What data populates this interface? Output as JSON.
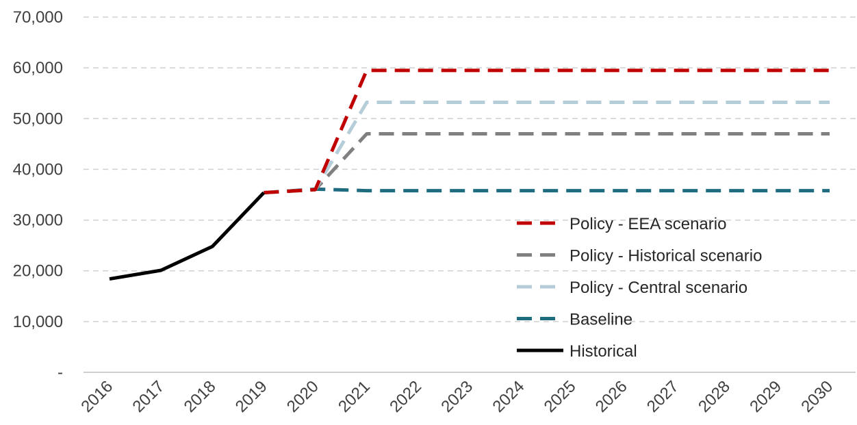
{
  "chart_data": {
    "type": "line",
    "x": [
      "2016",
      "2017",
      "2018",
      "2019",
      "2020",
      "2021",
      "2022",
      "2023",
      "2024",
      "2025",
      "2026",
      "2027",
      "2028",
      "2029",
      "2030"
    ],
    "y_ticks": [
      "-",
      "10,000",
      "20,000",
      "30,000",
      "40,000",
      "50,000",
      "60,000",
      "70,000"
    ],
    "ylim": [
      0,
      70000
    ],
    "grid": true,
    "legend_position": "lower-right",
    "series": [
      {
        "name": "Policy - EEA scenario",
        "color": "#c00000",
        "style": "dashed",
        "values": [
          null,
          null,
          null,
          35400,
          36000,
          59500,
          59500,
          59500,
          59500,
          59500,
          59500,
          59500,
          59500,
          59500,
          59500
        ]
      },
      {
        "name": "Policy - Historical scenario",
        "color": "#808080",
        "style": "dashed",
        "values": [
          null,
          null,
          null,
          35400,
          36000,
          47000,
          47000,
          47000,
          47000,
          47000,
          47000,
          47000,
          47000,
          47000,
          47000
        ]
      },
      {
        "name": "Policy - Central scenario",
        "color": "#b4cdd8",
        "style": "dashed",
        "values": [
          null,
          null,
          null,
          35400,
          36000,
          53200,
          53200,
          53200,
          53200,
          53200,
          53200,
          53200,
          53200,
          53200,
          53200
        ]
      },
      {
        "name": "Baseline",
        "color": "#1f6b80",
        "style": "dashed",
        "values": [
          null,
          null,
          null,
          35400,
          36100,
          35800,
          35800,
          35800,
          35800,
          35800,
          35800,
          35800,
          35800,
          35800,
          35800
        ]
      },
      {
        "name": "Historical",
        "color": "#000000",
        "style": "solid",
        "values": [
          18400,
          20100,
          24800,
          35400,
          null,
          null,
          null,
          null,
          null,
          null,
          null,
          null,
          null,
          null,
          null
        ]
      }
    ]
  }
}
